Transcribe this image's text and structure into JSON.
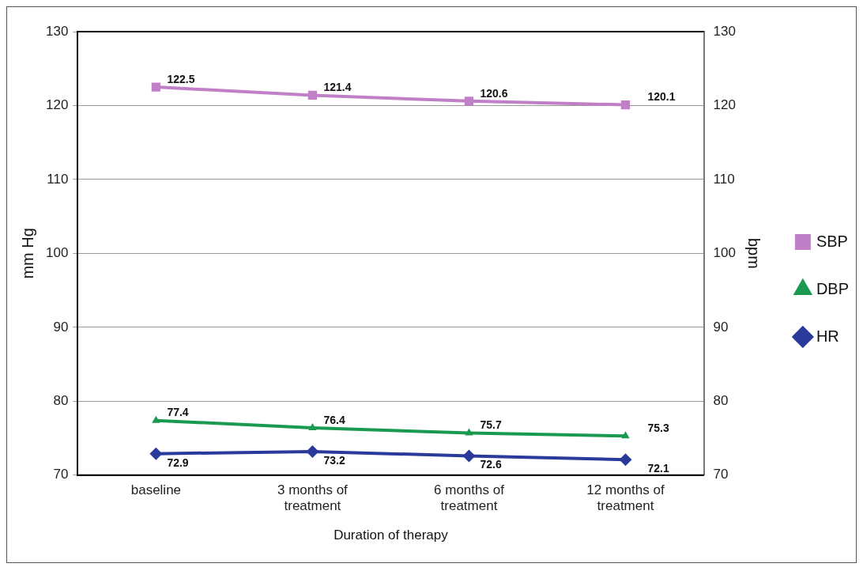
{
  "chart_data": {
    "type": "line",
    "xlabel": "Duration of therapy",
    "ylabel": "mm Hg",
    "y2label": "bpm",
    "categories": [
      "baseline",
      "3 months of treatment",
      "6 months of treatment",
      "12 months of treatment"
    ],
    "series": [
      {
        "name": "SBP",
        "color": "#c080c8",
        "marker": "square",
        "values": [
          122.5,
          121.4,
          120.6,
          120.1
        ]
      },
      {
        "name": "DBP",
        "color": "#1a9a50",
        "marker": "triangle",
        "values": [
          77.4,
          76.4,
          75.7,
          75.3
        ]
      },
      {
        "name": "HR",
        "color": "#2a3a9a",
        "marker": "diamond",
        "axis": "y2",
        "values": [
          72.9,
          73.2,
          72.6,
          72.1
        ]
      }
    ],
    "ylim": [
      70,
      130
    ],
    "yticks": [
      70,
      80,
      90,
      100,
      110,
      120,
      130
    ],
    "y2lim": [
      70,
      130
    ],
    "y2ticks": [
      70,
      80,
      90,
      100,
      110,
      120,
      130
    ],
    "grid": "y",
    "legend": "right",
    "data_labels": true,
    "line_style": "solid"
  }
}
